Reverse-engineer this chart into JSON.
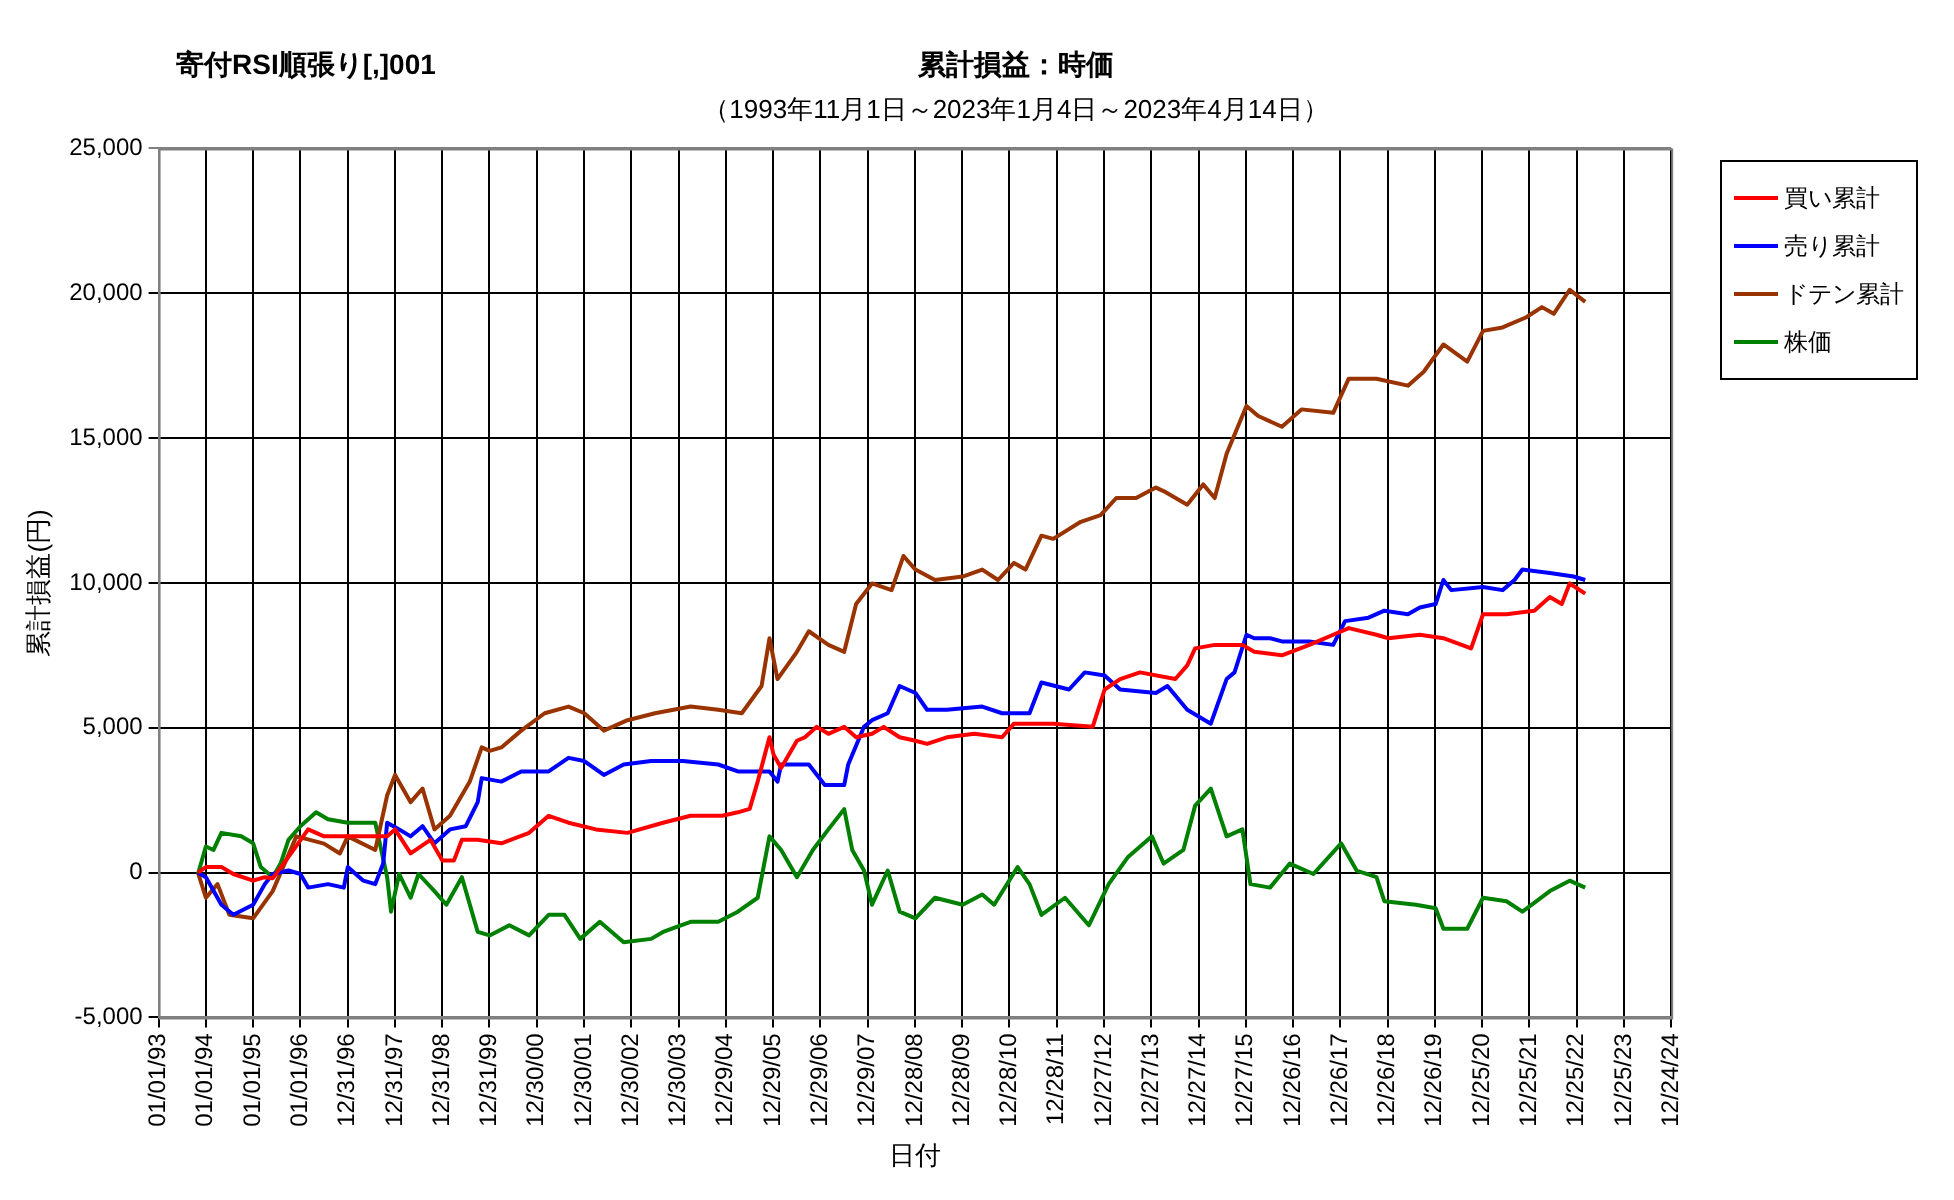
{
  "chart_data": {
    "type": "line",
    "title": "累計損益：時価",
    "subtitle": "（1993年11月1日～2023年1月4日～2023年4月14日）",
    "annotations": [
      "寄付RSI順張り[,]001"
    ],
    "xlabel": "日付",
    "ylabel": "累計損益(円)",
    "xlim": [
      "1993-01-01",
      "2024-12-24"
    ],
    "xticks": [
      {
        "value": "1993-01-01",
        "label": "01/01/93"
      },
      {
        "value": "1994-01-01",
        "label": "01/01/94"
      },
      {
        "value": "1995-01-01",
        "label": "01/01/95"
      },
      {
        "value": "1996-01-01",
        "label": "01/01/96"
      },
      {
        "value": "1996-12-31",
        "label": "12/31/96"
      },
      {
        "value": "1997-12-31",
        "label": "12/31/97"
      },
      {
        "value": "1998-12-31",
        "label": "12/31/98"
      },
      {
        "value": "1999-12-31",
        "label": "12/31/99"
      },
      {
        "value": "2000-12-30",
        "label": "12/30/00"
      },
      {
        "value": "2001-12-30",
        "label": "12/30/01"
      },
      {
        "value": "2002-12-30",
        "label": "12/30/02"
      },
      {
        "value": "2003-12-30",
        "label": "12/30/03"
      },
      {
        "value": "2004-12-29",
        "label": "12/29/04"
      },
      {
        "value": "2005-12-29",
        "label": "12/29/05"
      },
      {
        "value": "2006-12-29",
        "label": "12/29/06"
      },
      {
        "value": "2007-12-29",
        "label": "12/29/07"
      },
      {
        "value": "2008-12-28",
        "label": "12/28/08"
      },
      {
        "value": "2009-12-28",
        "label": "12/28/09"
      },
      {
        "value": "2010-12-28",
        "label": "12/28/10"
      },
      {
        "value": "2011-12-28",
        "label": "12/28/11"
      },
      {
        "value": "2012-12-27",
        "label": "12/27/12"
      },
      {
        "value": "2013-12-27",
        "label": "12/27/13"
      },
      {
        "value": "2014-12-27",
        "label": "12/27/14"
      },
      {
        "value": "2015-12-27",
        "label": "12/27/15"
      },
      {
        "value": "2016-12-26",
        "label": "12/26/16"
      },
      {
        "value": "2017-12-26",
        "label": "12/26/17"
      },
      {
        "value": "2018-12-26",
        "label": "12/26/18"
      },
      {
        "value": "2019-12-26",
        "label": "12/26/19"
      },
      {
        "value": "2020-12-25",
        "label": "12/25/20"
      },
      {
        "value": "2021-12-25",
        "label": "12/25/21"
      },
      {
        "value": "2022-12-25",
        "label": "12/25/22"
      },
      {
        "value": "2023-12-25",
        "label": "12/25/23"
      },
      {
        "value": "2024-12-24",
        "label": "12/24/24"
      }
    ],
    "ylim": [
      -5000,
      25000
    ],
    "yticks": [
      {
        "value": -5000,
        "label": "-5,000"
      },
      0,
      {
        "value": 5000,
        "label": "5,000"
      },
      {
        "value": 10000,
        "label": "10,000"
      },
      {
        "value": 15000,
        "label": "15,000"
      },
      {
        "value": 20000,
        "label": "20,000"
      },
      {
        "value": 25000,
        "label": "25,000"
      }
    ],
    "grid": true,
    "legend": "top right",
    "series": [
      {
        "name": "買い累計",
        "color": "#ff0000",
        "x": [
          "1993-11",
          "1994-01",
          "1994-05",
          "1994-08",
          "1995-01",
          "1995-04",
          "1995-06",
          "1995-10",
          "1996-03",
          "1996-07",
          "1997-01",
          "1997-06",
          "1997-11",
          "1998-01",
          "1998-05",
          "1998-10",
          "1999-01",
          "1999-04",
          "1999-06",
          "1999-10",
          "2000-04",
          "2000-11",
          "2001-04",
          "2001-09",
          "2002-04",
          "2002-12",
          "2003-09",
          "2004-04",
          "2004-12",
          "2005-04",
          "2005-07",
          "2005-09",
          "2005-12",
          "2006-01",
          "2006-03",
          "2006-07",
          "2006-09",
          "2006-12",
          "2007-03",
          "2007-07",
          "2007-10",
          "2008-02",
          "2008-05",
          "2008-09",
          "2009-01",
          "2009-04",
          "2009-09",
          "2010-04",
          "2010-11",
          "2011-02",
          "2011-12",
          "2012-10",
          "2013-01",
          "2013-05",
          "2013-10",
          "2014-07",
          "2014-10",
          "2014-12",
          "2015-05",
          "2015-12",
          "2016-03",
          "2016-10",
          "2017-05",
          "2017-11",
          "2018-03",
          "2018-10",
          "2019-01",
          "2019-09",
          "2020-03",
          "2020-10",
          "2021-01",
          "2021-07",
          "2022-02",
          "2022-06",
          "2022-09",
          "2022-11",
          "2023-03"
        ],
        "values": [
          0,
          190,
          190,
          -50,
          -280,
          -160,
          -200,
          540,
          1490,
          1250,
          1250,
          1250,
          1250,
          1490,
          660,
          1130,
          420,
          420,
          1130,
          1130,
          1010,
          1370,
          1960,
          1720,
          1490,
          1370,
          1720,
          1960,
          1960,
          2080,
          2200,
          3140,
          4670,
          4080,
          3610,
          4550,
          4670,
          5030,
          4790,
          5030,
          4670,
          4790,
          5030,
          4670,
          4550,
          4440,
          4670,
          4790,
          4670,
          5140,
          5140,
          5030,
          6320,
          6680,
          6910,
          6680,
          7150,
          7740,
          7860,
          7860,
          7620,
          7500,
          7860,
          8210,
          8440,
          8210,
          8090,
          8210,
          8090,
          7740,
          8920,
          8920,
          9040,
          9510,
          9270,
          9980,
          9630
        ]
      },
      {
        "name": "売り累計",
        "color": "#0000ff",
        "x": [
          "1993-11",
          "1994-01",
          "1994-05",
          "1994-08",
          "1995-01",
          "1995-04",
          "1995-06",
          "1995-10",
          "1996-01",
          "1996-03",
          "1996-08",
          "1996-12",
          "1997-01",
          "1997-05",
          "1997-08",
          "1997-10",
          "1997-11",
          "1998-02",
          "1998-05",
          "1998-08",
          "1998-11",
          "1999-03",
          "1999-07",
          "1999-10",
          "1999-11",
          "2000-04",
          "2000-09",
          "2001-04",
          "2001-09",
          "2002-01",
          "2002-06",
          "2002-11",
          "2003-06",
          "2004-02",
          "2004-11",
          "2005-04",
          "2005-12",
          "2006-02",
          "2006-03",
          "2006-10",
          "2007-02",
          "2007-07",
          "2007-08",
          "2007-12",
          "2008-02",
          "2008-06",
          "2008-09",
          "2009-01",
          "2009-04",
          "2009-09",
          "2010-06",
          "2010-11",
          "2011-03",
          "2011-06",
          "2011-09",
          "2012-04",
          "2012-08",
          "2013-01",
          "2013-05",
          "2014-02",
          "2014-05",
          "2014-10",
          "2015-04",
          "2015-08",
          "2015-10",
          "2016-01",
          "2016-03",
          "2016-07",
          "2016-10",
          "2017-05",
          "2017-11",
          "2018-02",
          "2018-08",
          "2018-12",
          "2019-06",
          "2019-09",
          "2020-01",
          "2020-03",
          "2020-05",
          "2021-01",
          "2021-06",
          "2021-09",
          "2021-11",
          "2022-06",
          "2022-12",
          "2023-03"
        ],
        "values": [
          0,
          -160,
          -1110,
          -1460,
          -1110,
          -400,
          -50,
          70,
          -50,
          -520,
          -400,
          -520,
          190,
          -280,
          -400,
          310,
          1720,
          1490,
          1250,
          1600,
          1010,
          1490,
          1600,
          2430,
          3260,
          3140,
          3490,
          3490,
          3960,
          3850,
          3370,
          3730,
          3850,
          3850,
          3730,
          3490,
          3490,
          3140,
          3730,
          3730,
          3020,
          3020,
          3730,
          5030,
          5260,
          5500,
          6440,
          6200,
          5620,
          5620,
          5730,
          5500,
          5500,
          5500,
          6560,
          6320,
          6910,
          6800,
          6320,
          6200,
          6440,
          5620,
          5140,
          6680,
          6910,
          8210,
          8090,
          8090,
          7980,
          7980,
          7860,
          8680,
          8800,
          9040,
          8920,
          9150,
          9270,
          10100,
          9750,
          9860,
          9750,
          10100,
          10460,
          10340,
          10220,
          10100
        ]
      },
      {
        "name": "ドテン累計",
        "color": "#993300",
        "x": [
          "1993-11",
          "1994-01",
          "1994-04",
          "1994-07",
          "1995-01",
          "1995-06",
          "1995-12",
          "1996-07",
          "1996-11",
          "1997-01",
          "1997-08",
          "1997-11",
          "1998-01",
          "1998-05",
          "1998-08",
          "1998-11",
          "1999-03",
          "1999-08",
          "1999-11",
          "2000-01",
          "2000-04",
          "2000-09",
          "2001-03",
          "2001-09",
          "2002-01",
          "2002-06",
          "2002-12",
          "2003-07",
          "2004-04",
          "2004-11",
          "2005-05",
          "2005-10",
          "2005-12",
          "2006-02",
          "2006-07",
          "2006-10",
          "2007-03",
          "2007-07",
          "2007-10",
          "2008-02",
          "2008-07",
          "2008-10",
          "2009-01",
          "2009-06",
          "2010-01",
          "2010-06",
          "2010-10",
          "2011-02",
          "2011-05",
          "2011-09",
          "2011-12",
          "2012-07",
          "2012-12",
          "2013-04",
          "2013-09",
          "2014-02",
          "2014-04",
          "2014-10",
          "2015-02",
          "2015-05",
          "2015-08",
          "2016-01",
          "2016-04",
          "2016-10",
          "2017-03",
          "2017-11",
          "2018-03",
          "2018-10",
          "2019-06",
          "2019-10",
          "2020-03",
          "2020-09",
          "2021-01",
          "2021-06",
          "2021-12",
          "2022-04",
          "2022-07",
          "2022-11",
          "2023-03"
        ],
        "values": [
          0,
          -870,
          -400,
          -1460,
          -1580,
          -640,
          1250,
          1000,
          660,
          1250,
          780,
          2670,
          3370,
          2430,
          2900,
          1490,
          1960,
          3140,
          4320,
          4200,
          4320,
          4900,
          5500,
          5730,
          5500,
          4900,
          5260,
          5500,
          5730,
          5620,
          5500,
          6440,
          8090,
          6680,
          7620,
          8330,
          7860,
          7620,
          9270,
          9980,
          9750,
          10930,
          10460,
          10100,
          10220,
          10460,
          10100,
          10690,
          10460,
          11630,
          11520,
          12110,
          12340,
          12930,
          12930,
          13290,
          13170,
          12700,
          13400,
          12930,
          14460,
          16110,
          15760,
          15390,
          15990,
          15870,
          17050,
          17050,
          16810,
          17290,
          18230,
          17640,
          18700,
          18820,
          19170,
          19520,
          19290,
          20120,
          19700
        ]
      },
      {
        "name": "株価",
        "color": "#008000",
        "x": [
          "1993-11",
          "1994-01",
          "1994-03",
          "1994-05",
          "1994-10",
          "1995-01",
          "1995-03",
          "1995-06",
          "1995-08",
          "1995-10",
          "1996-01",
          "1996-05",
          "1996-08",
          "1997-01",
          "1997-05",
          "1997-08",
          "1997-11",
          "1997-12",
          "1998-02",
          "1998-05",
          "1998-07",
          "1998-11",
          "1999-02",
          "1999-06",
          "1999-10",
          "2000-01",
          "2000-06",
          "2000-11",
          "2001-04",
          "2001-08",
          "2001-12",
          "2002-05",
          "2002-11",
          "2003-06",
          "2003-09",
          "2004-04",
          "2004-11",
          "2005-04",
          "2005-09",
          "2005-12",
          "2006-03",
          "2006-07",
          "2006-11",
          "2007-03",
          "2007-07",
          "2007-09",
          "2007-12",
          "2008-02",
          "2008-06",
          "2008-09",
          "2009-01",
          "2009-06",
          "2010-01",
          "2010-06",
          "2010-09",
          "2011-03",
          "2011-06",
          "2011-09",
          "2012-03",
          "2012-09",
          "2013-02",
          "2013-07",
          "2014-01",
          "2014-04",
          "2014-09",
          "2014-12",
          "2015-04",
          "2015-08",
          "2015-12",
          "2016-02",
          "2016-07",
          "2016-12",
          "2017-06",
          "2018-01",
          "2018-05",
          "2018-10",
          "2018-12",
          "2019-08",
          "2020-01",
          "2020-03",
          "2020-09",
          "2021-01",
          "2021-07",
          "2021-11",
          "2022-06",
          "2022-11",
          "2023-03"
        ],
        "values": [
          -50,
          900,
          780,
          1370,
          1250,
          1010,
          190,
          -160,
          310,
          1130,
          1600,
          2080,
          1840,
          1720,
          1720,
          1720,
          -160,
          -1350,
          -50,
          -870,
          -50,
          -640,
          -1110,
          -160,
          -2050,
          -2170,
          -1820,
          -2170,
          -1460,
          -1460,
          -2290,
          -1700,
          -2410,
          -2290,
          -2050,
          -1700,
          -1700,
          -1350,
          -870,
          1250,
          780,
          -160,
          780,
          1490,
          2190,
          780,
          70,
          -1110,
          70,
          -1350,
          -1580,
          -870,
          -1110,
          -760,
          -1110,
          190,
          -400,
          -1460,
          -870,
          -1820,
          -400,
          540,
          1250,
          310,
          780,
          2310,
          2900,
          1250,
          1490,
          -400,
          -520,
          310,
          -50,
          1010,
          70,
          -160,
          -990,
          -1110,
          -1230,
          -1940,
          -1940,
          -870,
          -990,
          -1350,
          -640,
          -280,
          -520
        ]
      }
    ]
  }
}
